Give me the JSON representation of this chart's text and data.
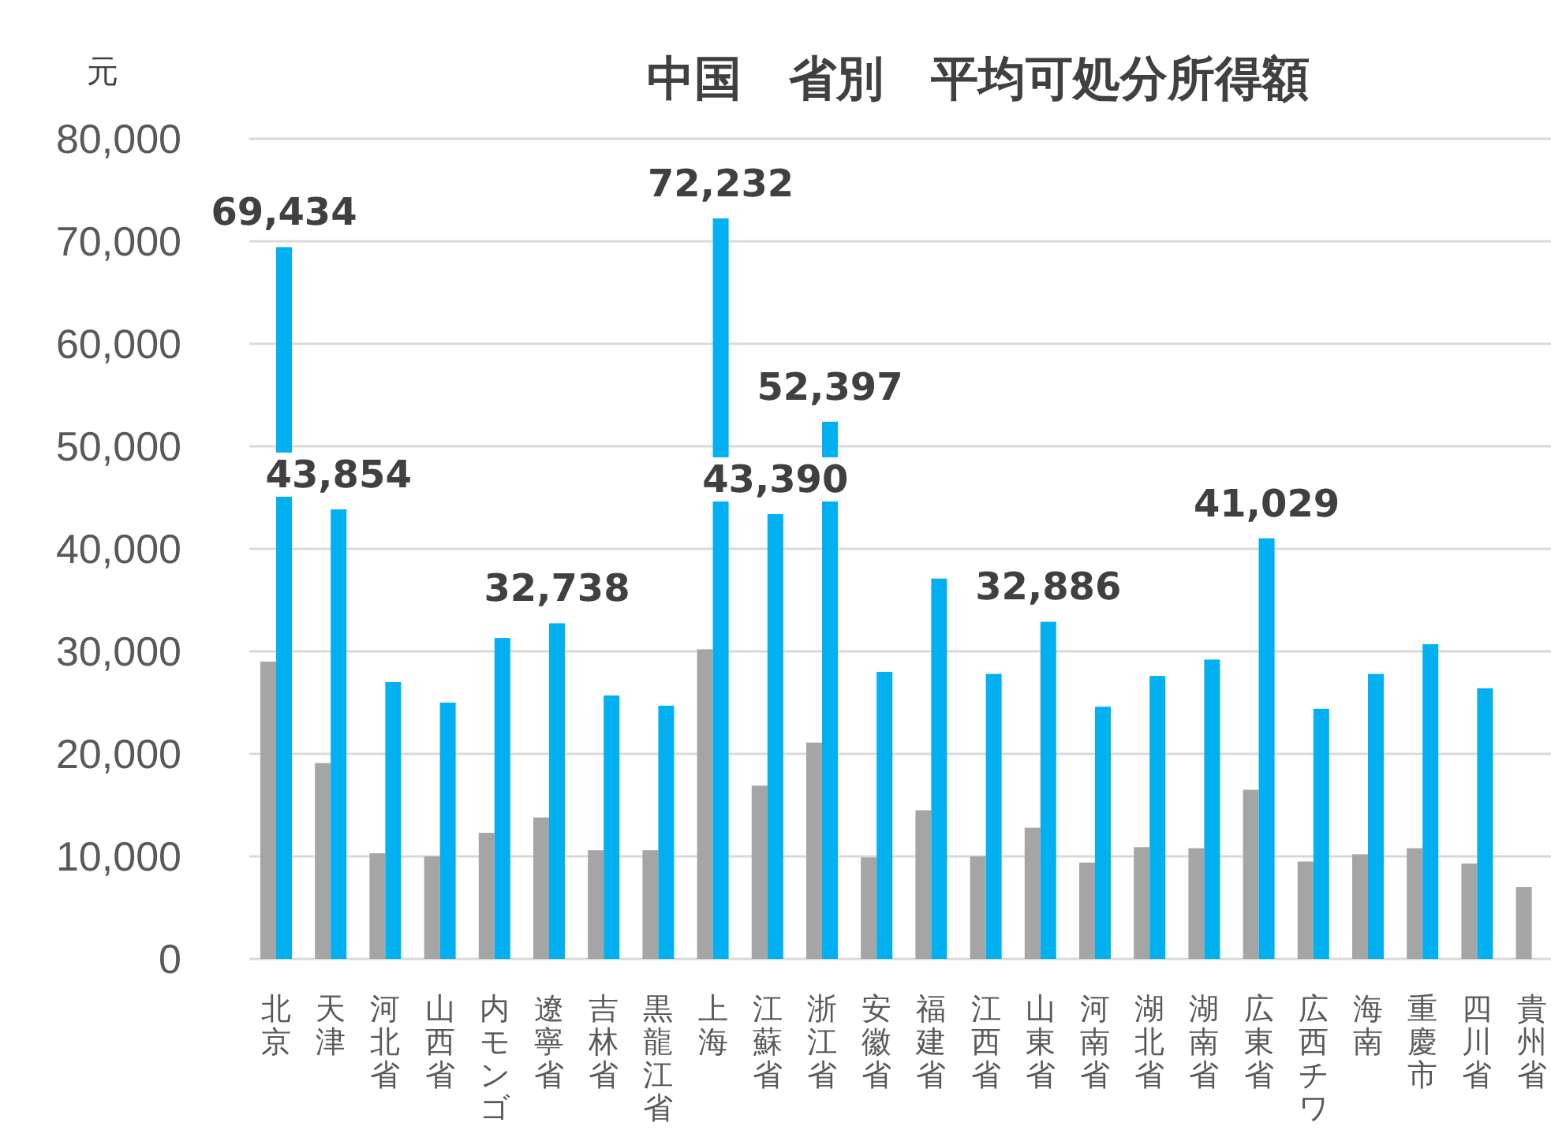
{
  "chart_data": {
    "type": "bar",
    "title": "中国　省別　平均可処分所得額",
    "ylabel": "元",
    "categories": [
      "北京",
      "天津",
      "河北省",
      "山西省",
      "内モンゴ",
      "遼寧省",
      "吉林省",
      "黒龍江省",
      "上海",
      "江蘇省",
      "浙江省",
      "安徽省",
      "福建省",
      "江西省",
      "山東省",
      "河南省",
      "湖北省",
      "湖南省",
      "広東省",
      "広西チワ",
      "海南",
      "重慶市",
      "四川省",
      "貴州省"
    ],
    "series": [
      {
        "color": "#a5a5a5",
        "values": [
          29000,
          19100,
          10300,
          10000,
          12300,
          13800,
          10600,
          10600,
          30200,
          16900,
          21100,
          9900,
          14500,
          10000,
          12800,
          9400,
          10900,
          10800,
          16500,
          9500,
          10200,
          10800,
          9300,
          7000
        ]
      },
      {
        "color": "#00b0f0",
        "values": [
          69434,
          43854,
          27000,
          25000,
          31300,
          32738,
          25700,
          24700,
          72232,
          43390,
          52397,
          28000,
          37100,
          27800,
          32886,
          24600,
          27600,
          29200,
          41029,
          24400,
          27800,
          30700,
          26400,
          null
        ],
        "value_labels": [
          "69,434",
          "43,854",
          null,
          null,
          null,
          "32,738",
          null,
          null,
          "72,232",
          "43,390",
          "52,397",
          null,
          null,
          null,
          "32,886",
          null,
          null,
          null,
          "41,029",
          null,
          null,
          null,
          null,
          null
        ]
      }
    ],
    "ylim": [
      0,
      80000
    ],
    "yticks": [
      {
        "value": 0,
        "label": "0"
      },
      {
        "value": 10000,
        "label": "10,000"
      },
      {
        "value": 20000,
        "label": "20,000"
      },
      {
        "value": 30000,
        "label": "30,000"
      },
      {
        "value": 40000,
        "label": "40,000"
      },
      {
        "value": 50000,
        "label": "50,000"
      },
      {
        "value": 60000,
        "label": "60,000"
      },
      {
        "value": 70000,
        "label": "70,000"
      },
      {
        "value": 80000,
        "label": "80,000"
      }
    ],
    "grid": "y"
  }
}
